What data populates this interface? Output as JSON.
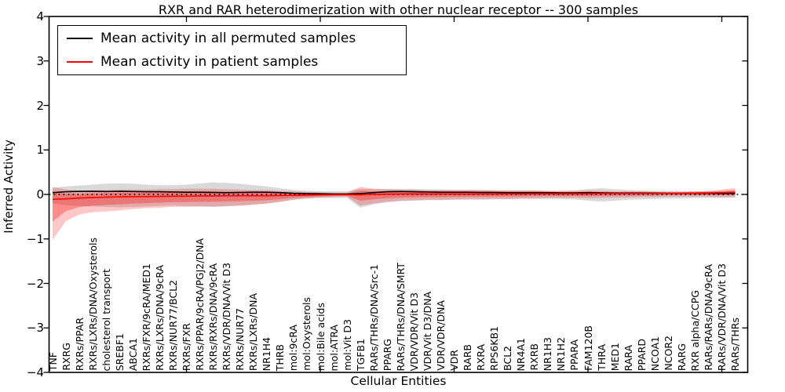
{
  "title": "RXR and RAR heterodimerization with other nuclear receptor -- 300 samples",
  "legend": {
    "entries": [
      {
        "label": "Mean activity in all permuted samples",
        "color": "#000000"
      },
      {
        "label": "Mean activity in patient samples",
        "color": "#ff0000"
      }
    ]
  },
  "axes": {
    "xlabel": "Cellular Entities",
    "ylabel": "Inferred Activity",
    "ytick_labels": [
      "4",
      "3",
      "2",
      "1",
      "0",
      "−1",
      "−2",
      "−3",
      "−4"
    ]
  },
  "chart_data": {
    "type": "line",
    "title": "RXR and RAR heterodimerization with other nuclear receptor -- 300 samples",
    "xlabel": "Cellular Entities",
    "ylabel": "Inferred Activity",
    "ylim": [
      -4,
      4
    ],
    "yticks": [
      4,
      3,
      2,
      1,
      0,
      -1,
      -2,
      -3,
      -4
    ],
    "xticks_top_positions": [
      10,
      20,
      30,
      40,
      50
    ],
    "grid": false,
    "legend_position": "upper left",
    "zero_line_style": "dotted",
    "categories": [
      "TNF",
      "RXRG",
      "RXRs/PPAR",
      "RXRs/LXRs/DNA/Oxysterols",
      "cholesterol transport",
      "SREBF1",
      "ABCA1",
      "RXRs/FXR/9cRA/MED1",
      "RXRs/LXRs/DNA/9cRA",
      "RXRs/NUR77/BCL2",
      "RXRs/FXR",
      "RXRs/PPAR/9cRA/PGJ2/DNA",
      "RXRs/RXRs/DNA/9cRA",
      "RXRs/VDR/DNA/Vit D3",
      "RXRs/NUR77",
      "RXRs/LXRs/DNA",
      "NR1H4",
      "THRB",
      "mol:9cRA",
      "mol:Oxysterols",
      "mol:Bile acids",
      "mol:ATRA",
      "mol:Vit D3",
      "TGFB1",
      "RARs/THRs/DNA/Src-1",
      "PPARG",
      "RARs/THRs/DNA/SMRT",
      "VDR/VDR/Vit D3",
      "VDR/Vit D3/DNA",
      "VDR/VDR/DNA",
      "VDR",
      "RARB",
      "RXRA",
      "RPS6KB1",
      "BCL2",
      "NR4A1",
      "RXRB",
      "NR1H3",
      "NR1H2",
      "PPARA",
      "FAM120B",
      "THRA",
      "MED1",
      "RARA",
      "PPARD",
      "NCOA1",
      "NCOR2",
      "RARG",
      "RXR alpha/CCPG",
      "RARs/RARs/DNA/9cRA",
      "RARs/VDR/DNA/Vit D3",
      "RARs/THRs"
    ],
    "series": [
      {
        "name": "Mean activity in all permuted samples",
        "color": "#000000",
        "values": [
          0.04,
          0.06,
          0.07,
          0.07,
          0.065,
          0.07,
          0.065,
          0.06,
          0.06,
          0.055,
          0.05,
          0.05,
          0.045,
          0.04,
          0.045,
          0.05,
          0.05,
          0.04,
          0.025,
          0.02,
          0.015,
          0.01,
          0.01,
          0.02,
          0.04,
          0.06,
          0.065,
          0.06,
          0.055,
          0.05,
          0.05,
          0.05,
          0.045,
          0.045,
          0.04,
          0.04,
          0.04,
          0.04,
          0.035,
          0.035,
          0.04,
          0.035,
          0.03,
          0.03,
          0.03,
          0.03,
          0.025,
          0.025,
          0.025,
          0.025,
          0.02,
          0.02
        ]
      },
      {
        "name": "Mean activity in patient samples",
        "color": "#ff0000",
        "values": [
          -0.11,
          -0.1,
          -0.08,
          -0.07,
          -0.06,
          -0.055,
          -0.05,
          -0.05,
          -0.045,
          -0.04,
          -0.04,
          -0.035,
          -0.035,
          -0.03,
          -0.03,
          -0.03,
          -0.03,
          -0.025,
          -0.02,
          -0.015,
          -0.01,
          -0.005,
          -0.005,
          -0.01,
          0.0,
          0.005,
          0.01,
          0.01,
          0.01,
          0.01,
          0.01,
          0.01,
          0.01,
          0.01,
          0.012,
          0.012,
          0.015,
          0.015,
          0.015,
          0.015,
          0.015,
          0.02,
          0.02,
          0.02,
          0.02,
          0.02,
          0.025,
          0.025,
          0.03,
          0.035,
          0.04,
          0.05
        ]
      }
    ],
    "bands": [
      {
        "name": "permuted samples range",
        "color": "#888888",
        "opacity": 0.32,
        "upper": [
          0.15,
          0.18,
          0.2,
          0.22,
          0.24,
          0.25,
          0.24,
          0.22,
          0.21,
          0.21,
          0.22,
          0.25,
          0.27,
          0.26,
          0.24,
          0.21,
          0.18,
          0.14,
          0.1,
          0.08,
          0.07,
          0.07,
          0.07,
          0.13,
          0.12,
          0.12,
          0.12,
          0.12,
          0.11,
          0.11,
          0.1,
          0.1,
          0.1,
          0.09,
          0.09,
          0.09,
          0.09,
          0.08,
          0.08,
          0.09,
          0.12,
          0.14,
          0.12,
          0.1,
          0.09,
          0.08,
          0.08,
          0.07,
          0.07,
          0.07,
          0.06,
          0.06
        ],
        "lower": [
          -0.2,
          -0.24,
          -0.26,
          -0.27,
          -0.28,
          -0.29,
          -0.28,
          -0.27,
          -0.26,
          -0.25,
          -0.26,
          -0.27,
          -0.28,
          -0.27,
          -0.25,
          -0.23,
          -0.2,
          -0.16,
          -0.12,
          -0.09,
          -0.08,
          -0.08,
          -0.08,
          -0.3,
          -0.22,
          -0.18,
          -0.15,
          -0.14,
          -0.13,
          -0.13,
          -0.12,
          -0.12,
          -0.12,
          -0.11,
          -0.11,
          -0.1,
          -0.1,
          -0.1,
          -0.1,
          -0.11,
          -0.14,
          -0.16,
          -0.14,
          -0.12,
          -0.11,
          -0.1,
          -0.09,
          -0.09,
          -0.08,
          -0.08,
          -0.08,
          -0.07
        ]
      },
      {
        "name": "patient samples range",
        "color": "#ff0000",
        "opacity": 0.22,
        "inner_band_fraction": 0.55,
        "inner_band_opacity": 0.3,
        "upper": [
          0.17,
          0.11,
          0.08,
          0.1,
          0.1,
          0.11,
          0.11,
          0.11,
          0.12,
          0.12,
          0.13,
          0.13,
          0.13,
          0.12,
          0.11,
          0.1,
          0.1,
          0.08,
          0.07,
          0.06,
          0.05,
          0.04,
          0.04,
          0.17,
          0.13,
          0.12,
          0.11,
          0.11,
          0.1,
          0.1,
          0.1,
          0.1,
          0.1,
          0.09,
          0.09,
          0.09,
          0.09,
          0.08,
          0.08,
          0.08,
          0.09,
          0.08,
          0.07,
          0.07,
          0.07,
          0.06,
          0.06,
          0.06,
          0.07,
          0.08,
          0.11,
          0.14
        ],
        "lower": [
          -1.02,
          -0.6,
          -0.45,
          -0.4,
          -0.38,
          -0.36,
          -0.33,
          -0.31,
          -0.3,
          -0.28,
          -0.28,
          -0.27,
          -0.27,
          -0.26,
          -0.25,
          -0.23,
          -0.21,
          -0.17,
          -0.12,
          -0.09,
          -0.07,
          -0.06,
          -0.05,
          -0.25,
          -0.2,
          -0.16,
          -0.14,
          -0.13,
          -0.12,
          -0.12,
          -0.11,
          -0.1,
          -0.1,
          -0.1,
          -0.1,
          -0.09,
          -0.09,
          -0.08,
          -0.08,
          -0.08,
          -0.09,
          -0.08,
          -0.07,
          -0.07,
          -0.06,
          -0.06,
          -0.05,
          -0.05,
          -0.05,
          -0.05,
          -0.06,
          -0.06
        ]
      }
    ]
  }
}
